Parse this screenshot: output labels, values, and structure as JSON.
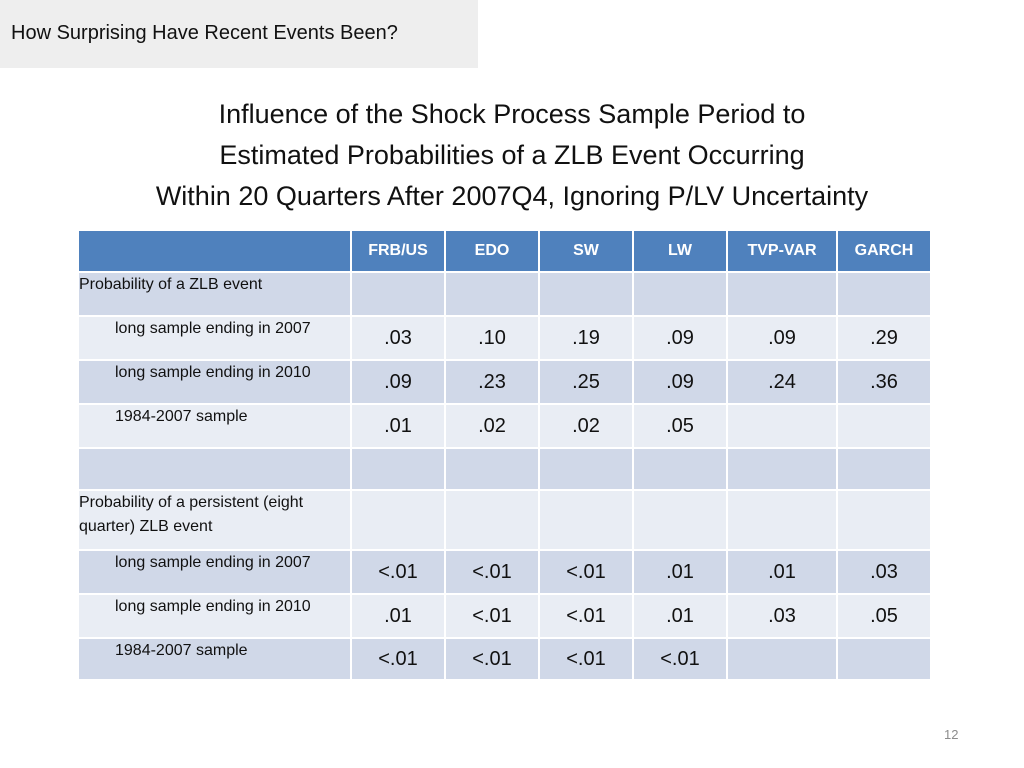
{
  "section": {
    "label": "How Surprising Have Recent Events Been?"
  },
  "title": {
    "line1": "Influence of the Shock Process Sample Period to",
    "line2": "Estimated Probabilities of a ZLB Event Occurring",
    "line3": "Within 20 Quarters After 2007Q4, Ignoring P/LV Uncertainty"
  },
  "table": {
    "headers": [
      "",
      "FRB/US",
      "EDO",
      "SW",
      "LW",
      "TVP-VAR",
      "GARCH"
    ],
    "rows": [
      {
        "label": "Probability of a ZLB event",
        "indent": false,
        "cells": [
          "",
          "",
          "",
          "",
          "",
          ""
        ]
      },
      {
        "label": "long sample ending in 2007",
        "indent": true,
        "cells": [
          ".03",
          ".10",
          ".19",
          ".09",
          ".09",
          ".29"
        ]
      },
      {
        "label": "long sample ending in 2010",
        "indent": true,
        "cells": [
          ".09",
          ".23",
          ".25",
          ".09",
          ".24",
          ".36"
        ]
      },
      {
        "label": "1984-2007 sample",
        "indent": true,
        "cells": [
          ".01",
          ".02",
          ".02",
          ".05",
          "",
          ""
        ]
      },
      {
        "label": "",
        "indent": false,
        "cells": [
          "",
          "",
          "",
          "",
          "",
          ""
        ]
      },
      {
        "label": "Probability of a persistent (eight quarter) ZLB event",
        "indent": false,
        "cells": [
          "",
          "",
          "",
          "",
          "",
          ""
        ]
      },
      {
        "label": "long sample ending in 2007",
        "indent": true,
        "cells": [
          "<.01",
          "<.01",
          "<.01",
          ".01",
          ".01",
          ".03"
        ]
      },
      {
        "label": "long sample ending in 2010",
        "indent": true,
        "cells": [
          ".01",
          "<.01",
          "<.01",
          ".01",
          ".03",
          ".05"
        ]
      },
      {
        "label": "1984-2007 sample",
        "indent": true,
        "cells": [
          "<.01",
          "<.01",
          "<.01",
          "<.01",
          "",
          ""
        ]
      }
    ]
  },
  "slide_number": "12",
  "colors": {
    "header_fill": "#4f81bd",
    "row_dark": "#d0d8e8",
    "row_light": "#e9edf4",
    "section_box": "#eeeeee"
  }
}
